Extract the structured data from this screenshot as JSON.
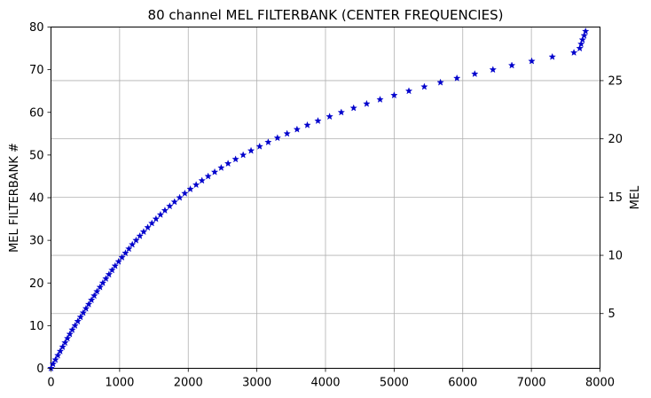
{
  "chart_data": {
    "type": "scatter",
    "title": "80 channel MEL FILTERBANK (CENTER FREQUENCIES)",
    "xlabel": "",
    "ylabel": "MEL FILTERBANK #",
    "y2label": "MEL",
    "xlim": [
      0,
      8000
    ],
    "ylim": [
      0,
      80
    ],
    "y2lim": [
      0.3,
      29.6
    ],
    "xticks": [
      0,
      1000,
      2000,
      3000,
      4000,
      5000,
      6000,
      7000,
      8000
    ],
    "yticks": [
      0,
      10,
      20,
      30,
      40,
      50,
      60,
      70,
      80
    ],
    "y2ticks": [
      5,
      10,
      15,
      20,
      25
    ],
    "grid": true,
    "marker": "star",
    "series": [
      {
        "color": "#0000cc",
        "points": [
          [
            0,
            0
          ],
          [
            30,
            1
          ],
          [
            65,
            2
          ],
          [
            100,
            3
          ],
          [
            135,
            4
          ],
          [
            170,
            5
          ],
          [
            205,
            6
          ],
          [
            240,
            7
          ],
          [
            275,
            8
          ],
          [
            310,
            9
          ],
          [
            350,
            10
          ],
          [
            390,
            11
          ],
          [
            430,
            12
          ],
          [
            470,
            13
          ],
          [
            510,
            14
          ],
          [
            550,
            15
          ],
          [
            590,
            16
          ],
          [
            630,
            17
          ],
          [
            670,
            18
          ],
          [
            715,
            19
          ],
          [
            755,
            20
          ],
          [
            800,
            21
          ],
          [
            845,
            22
          ],
          [
            890,
            23
          ],
          [
            935,
            24
          ],
          [
            985,
            25
          ],
          [
            1035,
            26
          ],
          [
            1085,
            27
          ],
          [
            1135,
            28
          ],
          [
            1185,
            29
          ],
          [
            1240,
            30
          ],
          [
            1295,
            31
          ],
          [
            1350,
            32
          ],
          [
            1410,
            33
          ],
          [
            1470,
            34
          ],
          [
            1530,
            35
          ],
          [
            1595,
            36
          ],
          [
            1660,
            37
          ],
          [
            1730,
            38
          ],
          [
            1800,
            39
          ],
          [
            1875,
            40
          ],
          [
            1950,
            41
          ],
          [
            2030,
            42
          ],
          [
            2115,
            43
          ],
          [
            2200,
            44
          ],
          [
            2290,
            45
          ],
          [
            2385,
            46
          ],
          [
            2480,
            47
          ],
          [
            2580,
            48
          ],
          [
            2690,
            49
          ],
          [
            2800,
            50
          ],
          [
            2915,
            51
          ],
          [
            3040,
            52
          ],
          [
            3165,
            53
          ],
          [
            3300,
            54
          ],
          [
            3440,
            55
          ],
          [
            3585,
            56
          ],
          [
            3735,
            57
          ],
          [
            3890,
            58
          ],
          [
            4060,
            59
          ],
          [
            4230,
            60
          ],
          [
            4410,
            61
          ],
          [
            4600,
            62
          ],
          [
            4795,
            63
          ],
          [
            5000,
            64
          ],
          [
            5215,
            65
          ],
          [
            5440,
            66
          ],
          [
            5675,
            67
          ],
          [
            5915,
            68
          ],
          [
            6175,
            69
          ],
          [
            6440,
            70
          ],
          [
            6715,
            71
          ],
          [
            7005,
            72
          ],
          [
            7305,
            73
          ],
          [
            7620,
            74
          ],
          [
            7705,
            75
          ],
          [
            7725,
            76
          ],
          [
            7745,
            77
          ],
          [
            7770,
            78
          ],
          [
            7790,
            79
          ]
        ]
      }
    ]
  }
}
